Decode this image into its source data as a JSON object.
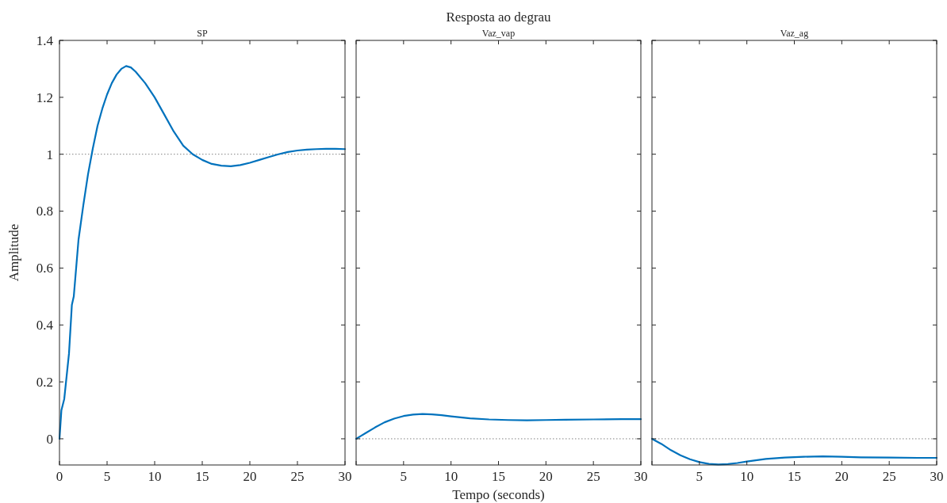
{
  "chart_data": [
    {
      "type": "line",
      "subtitle": "SP",
      "ylabel": "Amplitude",
      "x": [
        0,
        0.2,
        0.5,
        1,
        1.3,
        1.5,
        2,
        2.5,
        3,
        3.5,
        4,
        4.5,
        5,
        5.5,
        6,
        6.5,
        7,
        7.5,
        8,
        9,
        10,
        11,
        12,
        13,
        14,
        15,
        16,
        17,
        18,
        19,
        20,
        21,
        22,
        23,
        24,
        25,
        26,
        27,
        28,
        29,
        30
      ],
      "series": [
        {
          "color": "#0072bd",
          "values": [
            0,
            0.1,
            0.14,
            0.3,
            0.47,
            0.5,
            0.7,
            0.82,
            0.93,
            1.02,
            1.1,
            1.16,
            1.21,
            1.25,
            1.28,
            1.3,
            1.31,
            1.305,
            1.29,
            1.25,
            1.2,
            1.14,
            1.08,
            1.03,
            1.0,
            0.98,
            0.966,
            0.96,
            0.958,
            0.962,
            0.97,
            0.98,
            0.99,
            1.0,
            1.008,
            1.013,
            1.016,
            1.018,
            1.019,
            1.019,
            1.018
          ]
        }
      ],
      "xlim": [
        0,
        30
      ],
      "xticks": [
        0,
        5,
        10,
        15,
        20,
        25,
        30
      ],
      "ylim": [
        -0.092,
        1.4
      ],
      "yticks": [
        0,
        0.2,
        0.4,
        0.6,
        0.8,
        1,
        1.2,
        1.4
      ],
      "ref_lines": [
        {
          "axis": "y",
          "value": 1,
          "line_style": "dotted",
          "color": "#808080"
        }
      ],
      "grid": false,
      "marker": "none",
      "line_style": "solid"
    },
    {
      "type": "line",
      "title": "Resposta ao degrau",
      "subtitle": "Vaz_vap",
      "xlabel": "Tempo (seconds)",
      "x": [
        0,
        0.5,
        1,
        2,
        3,
        4,
        5,
        6,
        7,
        8,
        9,
        10,
        12,
        14,
        16,
        18,
        20,
        22,
        25,
        28,
        30
      ],
      "series": [
        {
          "color": "#0072bd",
          "values": [
            0,
            0.01,
            0.02,
            0.04,
            0.058,
            0.071,
            0.08,
            0.085,
            0.087,
            0.086,
            0.083,
            0.079,
            0.072,
            0.068,
            0.066,
            0.065,
            0.066,
            0.067,
            0.068,
            0.069,
            0.069
          ]
        }
      ],
      "xlim": [
        0,
        30
      ],
      "xticks": [
        {
          "value": 0,
          "label": null
        },
        5,
        10,
        15,
        20,
        25,
        30
      ],
      "ylim": [
        -0.092,
        1.4
      ],
      "yticks": [
        0,
        0.2,
        0.4,
        0.6,
        0.8,
        1,
        1.2,
        1.4
      ],
      "tick_labels": "x",
      "ref_lines": [
        {
          "axis": "y",
          "value": 0,
          "line_style": "dotted",
          "color": "#808080"
        }
      ],
      "grid": false,
      "marker": "none",
      "line_style": "solid"
    },
    {
      "type": "line",
      "subtitle": "Vaz_ag",
      "x": [
        0,
        1,
        2,
        3,
        4,
        5,
        6,
        7,
        8,
        9,
        10,
        12,
        14,
        16,
        18,
        20,
        22,
        25,
        28,
        30
      ],
      "series": [
        {
          "color": "#0072bd",
          "values": [
            0,
            -0.018,
            -0.04,
            -0.058,
            -0.072,
            -0.082,
            -0.088,
            -0.09,
            -0.089,
            -0.085,
            -0.08,
            -0.071,
            -0.066,
            -0.063,
            -0.062,
            -0.063,
            -0.065,
            -0.066,
            -0.067,
            -0.067
          ]
        }
      ],
      "xlim": [
        0,
        30
      ],
      "xticks": [
        {
          "value": 0,
          "label": null
        },
        5,
        10,
        15,
        20,
        25,
        30
      ],
      "ylim": [
        -0.092,
        1.4
      ],
      "yticks": [
        0,
        0.2,
        0.4,
        0.6,
        0.8,
        1,
        1.2,
        1.4
      ],
      "tick_labels": "x",
      "ref_lines": [
        {
          "axis": "y",
          "value": 0,
          "line_style": "dotted",
          "color": "#808080"
        }
      ],
      "grid": false,
      "marker": "none",
      "line_style": "solid"
    }
  ]
}
